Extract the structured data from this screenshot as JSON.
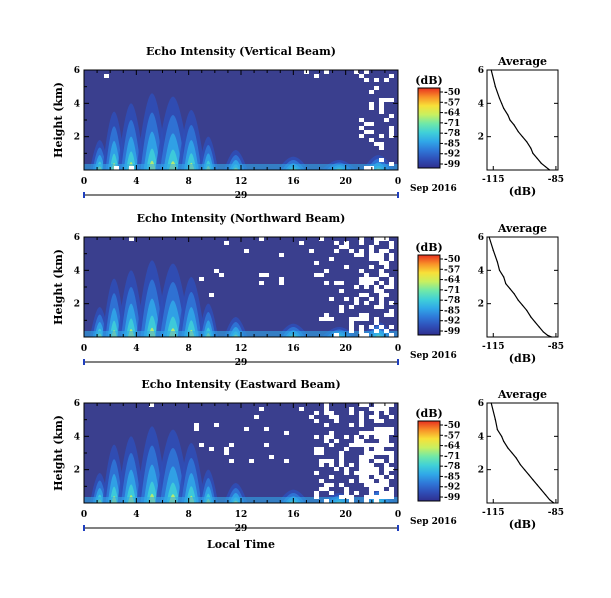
{
  "colors": {
    "background": "#3a3f8e",
    "colormap": [
      "#2f2f8f",
      "#2f4fb8",
      "#2f78d8",
      "#30a8e8",
      "#40d0d8",
      "#70e8a8",
      "#c8f060",
      "#f8e038",
      "#f89028",
      "#e83020"
    ],
    "axis_blue": "#1f3fbf"
  },
  "figure": {
    "xlabel": "Local Time",
    "date_label": "Sep 2016",
    "day_label": "29",
    "ylabel": "Height (km)",
    "avg_xlabel": "(dB)",
    "colorbar_title": "(dB)"
  },
  "chart_data": [
    {
      "type": "heatmap",
      "title": "Echo Intensity (Vertical Beam)",
      "xlabel": "Local Time",
      "ylabel": "Height (km)",
      "x_ticks": [
        "0",
        "4",
        "8",
        "12",
        "16",
        "20",
        "0"
      ],
      "y_ticks": [
        "6",
        "4",
        "2"
      ],
      "xlim": [
        0,
        24
      ],
      "ylim": [
        0,
        6
      ],
      "colorbar_ticks": [
        "-50",
        "-57",
        "-64",
        "-71",
        "-78",
        "-85",
        "-92",
        "-99"
      ],
      "gaps": "mostly-clear"
    },
    {
      "type": "heatmap",
      "title": "Echo Intensity (Northward Beam)",
      "xlabel": "Local Time",
      "ylabel": "Height (km)",
      "x_ticks": [
        "0",
        "4",
        "8",
        "12",
        "16",
        "20",
        "0"
      ],
      "y_ticks": [
        "6",
        "4",
        "2"
      ],
      "xlim": [
        0,
        24
      ],
      "ylim": [
        0,
        6
      ],
      "colorbar_ticks": [
        "-50",
        "-57",
        "-64",
        "-71",
        "-78",
        "-85",
        "-92",
        "-99"
      ],
      "gaps": "more-gaps"
    },
    {
      "type": "heatmap",
      "title": "Echo Intensity (Eastward Beam)",
      "xlabel": "Local Time",
      "ylabel": "Height (km)",
      "x_ticks": [
        "0",
        "4",
        "8",
        "12",
        "16",
        "20",
        "0"
      ],
      "y_ticks": [
        "6",
        "4",
        "2"
      ],
      "xlim": [
        0,
        24
      ],
      "ylim": [
        0,
        6
      ],
      "colorbar_ticks": [
        "-50",
        "-57",
        "-64",
        "-71",
        "-78",
        "-85",
        "-92",
        "-99"
      ],
      "gaps": "most-gaps"
    },
    {
      "type": "line",
      "title": "Average",
      "xlabel": "(dB)",
      "x_ticks": [
        "-115",
        "-85"
      ],
      "y_ticks": [
        "6",
        "4",
        "2"
      ],
      "xlim": [
        -118,
        -84
      ],
      "ylim": [
        0,
        6
      ],
      "x": [
        -116,
        -114,
        -112,
        -111,
        -110,
        -108,
        -107,
        -105,
        -103,
        -101,
        -99,
        -97,
        -96,
        -94,
        -92,
        -90,
        -88
      ],
      "y": [
        6.0,
        5.0,
        4.3,
        4.0,
        3.7,
        3.3,
        3.0,
        2.7,
        2.3,
        2.0,
        1.7,
        1.3,
        1.0,
        0.7,
        0.4,
        0.2,
        0.0
      ]
    },
    {
      "type": "line",
      "title": "Average",
      "xlabel": "(dB)",
      "x_ticks": [
        "-115",
        "-85"
      ],
      "y_ticks": [
        "6",
        "4",
        "2"
      ],
      "xlim": [
        -118,
        -84
      ],
      "ylim": [
        0,
        6
      ],
      "x": [
        -117,
        -115,
        -113,
        -112,
        -110,
        -109,
        -107,
        -105,
        -103,
        -101,
        -99,
        -97,
        -95,
        -93,
        -91,
        -89,
        -87
      ],
      "y": [
        6.0,
        5.2,
        4.5,
        4.0,
        3.6,
        3.2,
        2.9,
        2.6,
        2.2,
        1.9,
        1.6,
        1.2,
        0.9,
        0.6,
        0.3,
        0.1,
        0.0
      ]
    },
    {
      "type": "line",
      "title": "Average",
      "xlabel": "(dB)",
      "x_ticks": [
        "-115",
        "-85"
      ],
      "y_ticks": [
        "6",
        "4",
        "2"
      ],
      "xlim": [
        -118,
        -84
      ],
      "ylim": [
        0,
        6
      ],
      "x": [
        -116,
        -114,
        -113,
        -111,
        -110,
        -108,
        -106,
        -104,
        -102,
        -100,
        -98,
        -96,
        -94,
        -92,
        -90,
        -88,
        -86
      ],
      "y": [
        6.0,
        5.0,
        4.4,
        4.0,
        3.7,
        3.3,
        3.0,
        2.7,
        2.3,
        2.0,
        1.7,
        1.4,
        1.1,
        0.8,
        0.5,
        0.2,
        0.0
      ]
    }
  ]
}
